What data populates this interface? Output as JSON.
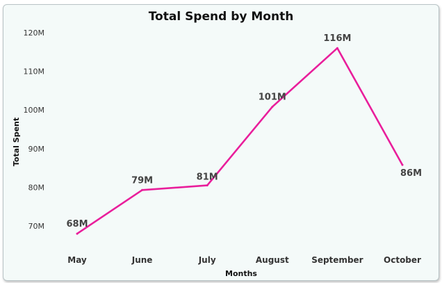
{
  "chart_data": {
    "type": "line",
    "title": "Total Spend by Month",
    "xlabel": "Months",
    "ylabel": "Total Spent",
    "categories": [
      "May",
      "June",
      "July",
      "August",
      "September",
      "October"
    ],
    "values": [
      68,
      79.3,
      80.5,
      100.8,
      116,
      85.8
    ],
    "data_labels": [
      "68M",
      "79M",
      "81M",
      "101M",
      "116M",
      "86M"
    ],
    "yticks": [
      70,
      80,
      90,
      100,
      110,
      120
    ],
    "ytick_labels": [
      "70M",
      "80M",
      "90M",
      "100M",
      "110M",
      "120M"
    ],
    "ylim": [
      65.5,
      120
    ],
    "grid": false,
    "legend": "none",
    "line_color": "#e91e9b"
  }
}
